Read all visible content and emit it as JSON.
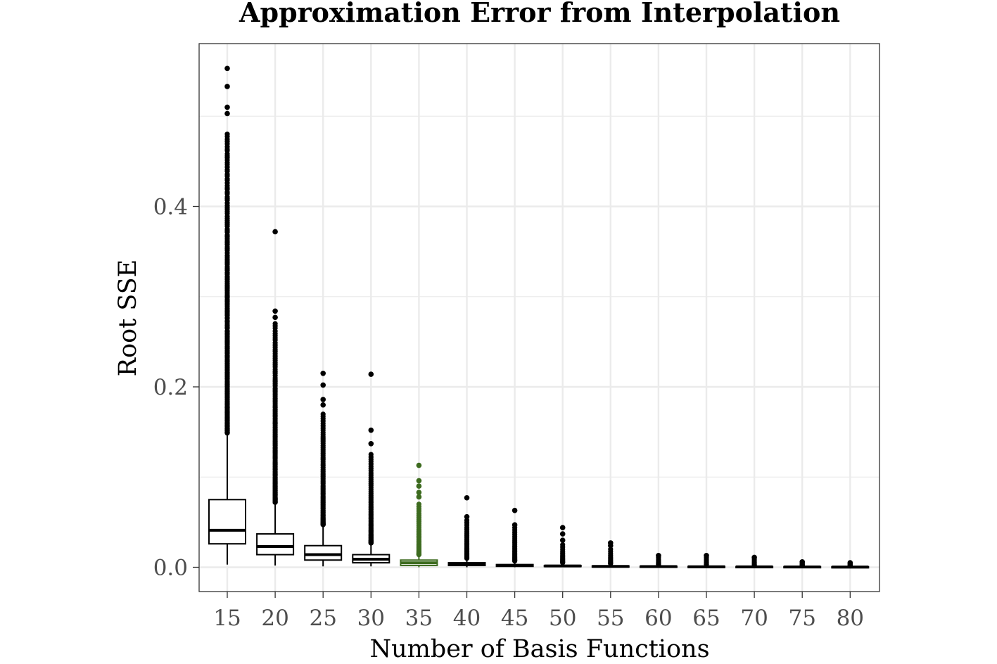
{
  "colors": {
    "default_box": "#000000",
    "highlight_box": "#3d6b1f",
    "grid": "#ebebeb",
    "panel_border": "#333333",
    "tick_label": "#4d4d4d",
    "background": "#ffffff"
  },
  "chart_data": {
    "type": "box",
    "title": "Approximation Error from Interpolation",
    "xlabel": "Number of Basis Functions",
    "ylabel": "Root SSE",
    "ylim": [
      -0.027,
      0.579
    ],
    "y_ticks": [
      "0.0",
      "0.2",
      "0.4"
    ],
    "y_tick_values": [
      0.0,
      0.2,
      0.4
    ],
    "grid": true,
    "legend": "none",
    "categories": [
      "15",
      "20",
      "25",
      "30",
      "35",
      "40",
      "45",
      "50",
      "55",
      "60",
      "65",
      "70",
      "75",
      "80"
    ],
    "highlight_category": "35",
    "boxes": [
      {
        "x": "15",
        "q1": 0.026,
        "median": 0.041,
        "q3": 0.075,
        "whisker_low": 0.003,
        "whisker_high": 0.148,
        "outlier_min": 0.149,
        "outlier_max": 0.48,
        "extra_outliers": [
          0.503,
          0.51,
          0.533,
          0.553
        ]
      },
      {
        "x": "20",
        "q1": 0.014,
        "median": 0.023,
        "q3": 0.037,
        "whisker_low": 0.002,
        "whisker_high": 0.071,
        "outlier_min": 0.072,
        "outlier_max": 0.27,
        "extra_outliers": [
          0.277,
          0.284,
          0.372
        ]
      },
      {
        "x": "25",
        "q1": 0.008,
        "median": 0.014,
        "q3": 0.024,
        "whisker_low": 0.001,
        "whisker_high": 0.046,
        "outlier_min": 0.047,
        "outlier_max": 0.17,
        "extra_outliers": [
          0.18,
          0.186,
          0.202,
          0.215
        ]
      },
      {
        "x": "30",
        "q1": 0.005,
        "median": 0.009,
        "q3": 0.014,
        "whisker_low": 0.001,
        "whisker_high": 0.026,
        "outlier_min": 0.027,
        "outlier_max": 0.125,
        "extra_outliers": [
          0.137,
          0.152,
          0.214
        ]
      },
      {
        "x": "35",
        "q1": 0.002,
        "median": 0.005,
        "q3": 0.008,
        "whisker_low": 0.0,
        "whisker_high": 0.013,
        "outlier_min": 0.014,
        "outlier_max": 0.07,
        "extra_outliers": [
          0.078,
          0.083,
          0.09,
          0.096,
          0.113
        ]
      },
      {
        "x": "40",
        "q1": 0.002,
        "median": 0.003,
        "q3": 0.005,
        "whisker_low": 0.0,
        "whisker_high": 0.009,
        "outlier_min": 0.01,
        "outlier_max": 0.052,
        "extra_outliers": [
          0.056,
          0.077
        ]
      },
      {
        "x": "45",
        "q1": 0.001,
        "median": 0.002,
        "q3": 0.003,
        "whisker_low": 0.0,
        "whisker_high": 0.006,
        "outlier_min": 0.007,
        "outlier_max": 0.044,
        "extra_outliers": [
          0.047,
          0.063
        ]
      },
      {
        "x": "50",
        "q1": 0.001,
        "median": 0.0015,
        "q3": 0.002,
        "whisker_low": 0.0,
        "whisker_high": 0.004,
        "outlier_min": 0.005,
        "outlier_max": 0.025,
        "extra_outliers": [
          0.03,
          0.037,
          0.044
        ]
      },
      {
        "x": "55",
        "q1": 0.0005,
        "median": 0.001,
        "q3": 0.0015,
        "whisker_low": 0.0,
        "whisker_high": 0.003,
        "outlier_min": 0.004,
        "outlier_max": 0.02,
        "extra_outliers": [
          0.024,
          0.027
        ]
      },
      {
        "x": "60",
        "q1": 0.0004,
        "median": 0.0008,
        "q3": 0.0012,
        "whisker_low": 0.0,
        "whisker_high": 0.002,
        "outlier_min": 0.003,
        "outlier_max": 0.011,
        "extra_outliers": [
          0.013
        ]
      },
      {
        "x": "65",
        "q1": 0.0003,
        "median": 0.0006,
        "q3": 0.001,
        "whisker_low": 0.0,
        "whisker_high": 0.002,
        "outlier_min": 0.003,
        "outlier_max": 0.011,
        "extra_outliers": [
          0.013
        ]
      },
      {
        "x": "70",
        "q1": 0.0002,
        "median": 0.0005,
        "q3": 0.0008,
        "whisker_low": 0.0,
        "whisker_high": 0.0015,
        "outlier_min": 0.002,
        "outlier_max": 0.009,
        "extra_outliers": [
          0.011
        ]
      },
      {
        "x": "75",
        "q1": 0.0002,
        "median": 0.0004,
        "q3": 0.0007,
        "whisker_low": 0.0,
        "whisker_high": 0.0012,
        "outlier_min": 0.002,
        "outlier_max": 0.005,
        "extra_outliers": [
          0.006
        ]
      },
      {
        "x": "80",
        "q1": 0.0001,
        "median": 0.0003,
        "q3": 0.0006,
        "whisker_low": 0.0,
        "whisker_high": 0.001,
        "outlier_min": 0.0015,
        "outlier_max": 0.004,
        "extra_outliers": [
          0.005
        ]
      }
    ]
  }
}
